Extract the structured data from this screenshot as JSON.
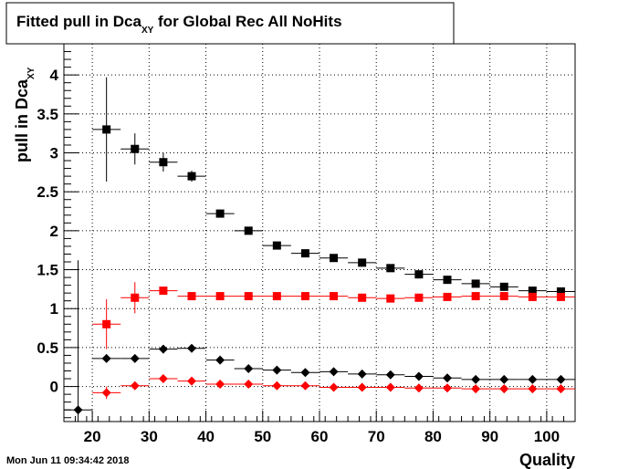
{
  "chart_data": {
    "type": "scatter",
    "title": "Fitted pull in Dca",
    "title_subscript": "XY",
    "title_suffix": " for Global Rec All NoHits",
    "xlabel": "Quality",
    "ylabel": "pull in Dca",
    "ylabel_subscript": "XY",
    "xlim": [
      15,
      105
    ],
    "ylim": [
      -0.45,
      4.4
    ],
    "xticks": [
      20,
      30,
      40,
      50,
      60,
      70,
      80,
      90,
      100
    ],
    "yticks": [
      0,
      0.5,
      1,
      1.5,
      2,
      2.5,
      3,
      3.5,
      4
    ],
    "ytick_labels": [
      "0",
      "0.5",
      "1",
      "1.5",
      "2",
      "2.5",
      "3",
      "3.5",
      "4"
    ],
    "grid": true,
    "legend": "none",
    "series": [
      {
        "color": "#000000",
        "marker": "square",
        "points": [
          {
            "x": 22.5,
            "xerr": 2.5,
            "y": 3.3,
            "yerr": 0.67
          },
          {
            "x": 27.5,
            "xerr": 2.5,
            "y": 3.05,
            "yerr": 0.2
          },
          {
            "x": 32.5,
            "xerr": 2.5,
            "y": 2.88,
            "yerr": 0.12
          },
          {
            "x": 37.5,
            "xerr": 2.5,
            "y": 2.7,
            "yerr": 0.07
          },
          {
            "x": 42.5,
            "xerr": 2.5,
            "y": 2.22,
            "yerr": 0.04
          },
          {
            "x": 47.5,
            "xerr": 2.5,
            "y": 2.0,
            "yerr": 0.03
          },
          {
            "x": 52.5,
            "xerr": 2.5,
            "y": 1.81,
            "yerr": 0.02
          },
          {
            "x": 57.5,
            "xerr": 2.5,
            "y": 1.71,
            "yerr": 0.02
          },
          {
            "x": 62.5,
            "xerr": 2.5,
            "y": 1.65,
            "yerr": 0.02
          },
          {
            "x": 67.5,
            "xerr": 2.5,
            "y": 1.59,
            "yerr": 0.02
          },
          {
            "x": 72.5,
            "xerr": 2.5,
            "y": 1.52,
            "yerr": 0.02
          },
          {
            "x": 77.5,
            "xerr": 2.5,
            "y": 1.44,
            "yerr": 0.02
          },
          {
            "x": 82.5,
            "xerr": 2.5,
            "y": 1.37,
            "yerr": 0.02
          },
          {
            "x": 87.5,
            "xerr": 2.5,
            "y": 1.32,
            "yerr": 0.02
          },
          {
            "x": 92.5,
            "xerr": 2.5,
            "y": 1.28,
            "yerr": 0.02
          },
          {
            "x": 97.5,
            "xerr": 2.5,
            "y": 1.23,
            "yerr": 0.02
          },
          {
            "x": 102.5,
            "xerr": 2.5,
            "y": 1.22,
            "yerr": 0.02
          }
        ]
      },
      {
        "color": "#ff0000",
        "marker": "square",
        "points": [
          {
            "x": 22.5,
            "xerr": 2.5,
            "y": 0.8,
            "yerr": 0.32
          },
          {
            "x": 27.5,
            "xerr": 2.5,
            "y": 1.14,
            "yerr": 0.2
          },
          {
            "x": 32.5,
            "xerr": 2.5,
            "y": 1.23,
            "yerr": 0.05
          },
          {
            "x": 37.5,
            "xerr": 2.5,
            "y": 1.16,
            "yerr": 0.03
          },
          {
            "x": 42.5,
            "xerr": 2.5,
            "y": 1.16,
            "yerr": 0.02
          },
          {
            "x": 47.5,
            "xerr": 2.5,
            "y": 1.16,
            "yerr": 0.02
          },
          {
            "x": 52.5,
            "xerr": 2.5,
            "y": 1.16,
            "yerr": 0.02
          },
          {
            "x": 57.5,
            "xerr": 2.5,
            "y": 1.16,
            "yerr": 0.02
          },
          {
            "x": 62.5,
            "xerr": 2.5,
            "y": 1.16,
            "yerr": 0.02
          },
          {
            "x": 67.5,
            "xerr": 2.5,
            "y": 1.14,
            "yerr": 0.02
          },
          {
            "x": 72.5,
            "xerr": 2.5,
            "y": 1.13,
            "yerr": 0.02
          },
          {
            "x": 77.5,
            "xerr": 2.5,
            "y": 1.14,
            "yerr": 0.02
          },
          {
            "x": 82.5,
            "xerr": 2.5,
            "y": 1.15,
            "yerr": 0.02
          },
          {
            "x": 87.5,
            "xerr": 2.5,
            "y": 1.16,
            "yerr": 0.02
          },
          {
            "x": 92.5,
            "xerr": 2.5,
            "y": 1.16,
            "yerr": 0.02
          },
          {
            "x": 97.5,
            "xerr": 2.5,
            "y": 1.15,
            "yerr": 0.02
          },
          {
            "x": 102.5,
            "xerr": 2.5,
            "y": 1.15,
            "yerr": 0.02
          }
        ]
      },
      {
        "color": "#000000",
        "marker": "diamond",
        "points": [
          {
            "x": 17.5,
            "xerr": 2.5,
            "y": -0.3,
            "yerr": 1.92
          },
          {
            "x": 22.5,
            "xerr": 2.5,
            "y": 0.36,
            "yerr": 0.05
          },
          {
            "x": 27.5,
            "xerr": 2.5,
            "y": 0.36,
            "yerr": 0.05
          },
          {
            "x": 32.5,
            "xerr": 2.5,
            "y": 0.48,
            "yerr": 0.05
          },
          {
            "x": 37.5,
            "xerr": 2.5,
            "y": 0.49,
            "yerr": 0.03
          },
          {
            "x": 42.5,
            "xerr": 2.5,
            "y": 0.34,
            "yerr": 0.02
          },
          {
            "x": 47.5,
            "xerr": 2.5,
            "y": 0.23,
            "yerr": 0.02
          },
          {
            "x": 52.5,
            "xerr": 2.5,
            "y": 0.21,
            "yerr": 0.02
          },
          {
            "x": 57.5,
            "xerr": 2.5,
            "y": 0.18,
            "yerr": 0.02
          },
          {
            "x": 62.5,
            "xerr": 2.5,
            "y": 0.19,
            "yerr": 0.02
          },
          {
            "x": 67.5,
            "xerr": 2.5,
            "y": 0.16,
            "yerr": 0.02
          },
          {
            "x": 72.5,
            "xerr": 2.5,
            "y": 0.15,
            "yerr": 0.02
          },
          {
            "x": 77.5,
            "xerr": 2.5,
            "y": 0.13,
            "yerr": 0.02
          },
          {
            "x": 82.5,
            "xerr": 2.5,
            "y": 0.11,
            "yerr": 0.02
          },
          {
            "x": 87.5,
            "xerr": 2.5,
            "y": 0.09,
            "yerr": 0.02
          },
          {
            "x": 92.5,
            "xerr": 2.5,
            "y": 0.09,
            "yerr": 0.02
          },
          {
            "x": 97.5,
            "xerr": 2.5,
            "y": 0.09,
            "yerr": 0.02
          },
          {
            "x": 102.5,
            "xerr": 2.5,
            "y": 0.09,
            "yerr": 0.02
          }
        ]
      },
      {
        "color": "#ff0000",
        "marker": "diamond",
        "points": [
          {
            "x": 22.5,
            "xerr": 2.5,
            "y": -0.08,
            "yerr": 0.08
          },
          {
            "x": 27.5,
            "xerr": 2.5,
            "y": 0.01,
            "yerr": 0.05
          },
          {
            "x": 32.5,
            "xerr": 2.5,
            "y": 0.1,
            "yerr": 0.04
          },
          {
            "x": 37.5,
            "xerr": 2.5,
            "y": 0.07,
            "yerr": 0.03
          },
          {
            "x": 42.5,
            "xerr": 2.5,
            "y": 0.03,
            "yerr": 0.02
          },
          {
            "x": 47.5,
            "xerr": 2.5,
            "y": 0.03,
            "yerr": 0.02
          },
          {
            "x": 52.5,
            "xerr": 2.5,
            "y": 0.01,
            "yerr": 0.02
          },
          {
            "x": 57.5,
            "xerr": 2.5,
            "y": 0.01,
            "yerr": 0.02
          },
          {
            "x": 62.5,
            "xerr": 2.5,
            "y": -0.01,
            "yerr": 0.02
          },
          {
            "x": 67.5,
            "xerr": 2.5,
            "y": -0.01,
            "yerr": 0.02
          },
          {
            "x": 72.5,
            "xerr": 2.5,
            "y": -0.01,
            "yerr": 0.02
          },
          {
            "x": 77.5,
            "xerr": 2.5,
            "y": -0.02,
            "yerr": 0.02
          },
          {
            "x": 82.5,
            "xerr": 2.5,
            "y": -0.02,
            "yerr": 0.02
          },
          {
            "x": 87.5,
            "xerr": 2.5,
            "y": -0.03,
            "yerr": 0.02
          },
          {
            "x": 92.5,
            "xerr": 2.5,
            "y": -0.03,
            "yerr": 0.02
          },
          {
            "x": 97.5,
            "xerr": 2.5,
            "y": -0.03,
            "yerr": 0.02
          },
          {
            "x": 102.5,
            "xerr": 2.5,
            "y": -0.03,
            "yerr": 0.02
          }
        ]
      }
    ]
  },
  "timestamp": "Mon Jun 11 09:34:42 2018"
}
